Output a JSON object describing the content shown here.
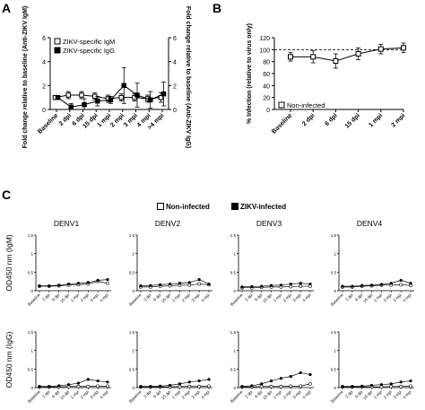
{
  "panel_labels": {
    "a": "A",
    "b": "B",
    "c": "C"
  },
  "chart_data": [
    {
      "id": "A",
      "type": "line",
      "categories": [
        "Baseline",
        "2 dpi",
        "6 dpi",
        "15 dpi",
        "1 mpi",
        "2 mpi",
        "3 mpi",
        "4 mpi",
        ">4 mpi"
      ],
      "ylabel": "Fold change relative to baseline (Anti-ZIKV IgM)",
      "y2label": "Fold change relative to baseline (Anti-ZIKV IgG)",
      "ylim": [
        0,
        6
      ],
      "yticks": [
        0,
        2,
        4,
        6
      ],
      "legend_position": "top-left",
      "series": [
        {
          "name": "ZIKV-specific IgM",
          "marker": "open-square",
          "values": [
            1.0,
            1.2,
            1.2,
            1.1,
            0.9,
            1.0,
            1.0,
            0.9,
            1.0
          ],
          "errors": [
            0,
            0.3,
            0.3,
            0.3,
            0.3,
            0.3,
            0.3,
            0.3,
            0.4
          ]
        },
        {
          "name": "ZIKV-specific IgG",
          "marker": "filled-square",
          "values": [
            1.0,
            0.2,
            0.4,
            0.7,
            0.8,
            2.0,
            1.2,
            0.8,
            1.3
          ],
          "errors": [
            0,
            0.3,
            0.5,
            0.4,
            0.3,
            1.5,
            1.0,
            0.7,
            1.0
          ]
        }
      ]
    },
    {
      "id": "B",
      "type": "line",
      "categories": [
        "Baseline",
        "2 dpi",
        "6 dpi",
        "15 dpi",
        "1 mpi",
        "2 mpi"
      ],
      "ylabel": "% Infection (relative to virus only)",
      "ylim": [
        0,
        120
      ],
      "yticks": [
        0,
        20,
        40,
        60,
        80,
        100,
        120
      ],
      "reference_line": 100,
      "legend_position": "bottom-left",
      "series": [
        {
          "name": "Non-infected",
          "marker": "open-square",
          "values": [
            88,
            88,
            81,
            93,
            101,
            103
          ],
          "errors": [
            7,
            10,
            12,
            10,
            8,
            8
          ]
        }
      ]
    },
    {
      "id": "C",
      "type": "line",
      "legend": [
        "Non-infected",
        "ZIKV-infected"
      ],
      "legend_position": "top",
      "row_labels": [
        "OD450 nm (IgM)",
        "OD450 nm (IgG)"
      ],
      "column_titles": [
        "DENV1",
        "DENV2",
        "DENV3",
        "DENV4"
      ],
      "categories": [
        "Baseline",
        "2 dpi",
        "6 dpi",
        "15 dpi",
        "1 mpi",
        "2 mpi",
        "3 mpi",
        "4 mpi"
      ],
      "ylim": [
        0,
        1.5
      ],
      "yticks": [
        0.0,
        0.5,
        1.0,
        1.5
      ],
      "panels": [
        {
          "row": 0,
          "col": 0,
          "non_infected": [
            0.12,
            0.12,
            0.13,
            0.15,
            0.16,
            0.18,
            0.25,
            0.2
          ],
          "zikv_infected": [
            0.13,
            0.13,
            0.15,
            0.18,
            0.2,
            0.22,
            0.28,
            0.3
          ]
        },
        {
          "row": 0,
          "col": 1,
          "non_infected": [
            0.1,
            0.1,
            0.12,
            0.13,
            0.15,
            0.15,
            0.18,
            0.16
          ],
          "zikv_infected": [
            0.13,
            0.14,
            0.16,
            0.18,
            0.2,
            0.22,
            0.3,
            0.18
          ]
        },
        {
          "row": 0,
          "col": 2,
          "non_infected": [
            0.08,
            0.08,
            0.09,
            0.1,
            0.1,
            0.11,
            0.12,
            0.12
          ],
          "zikv_infected": [
            0.1,
            0.11,
            0.12,
            0.14,
            0.15,
            0.18,
            0.2,
            0.18
          ]
        },
        {
          "row": 0,
          "col": 3,
          "non_infected": [
            0.1,
            0.1,
            0.12,
            0.13,
            0.15,
            0.15,
            0.16,
            0.14
          ],
          "zikv_infected": [
            0.12,
            0.12,
            0.14,
            0.15,
            0.17,
            0.2,
            0.28,
            0.2
          ]
        },
        {
          "row": 1,
          "col": 0,
          "non_infected": [
            0.02,
            0.02,
            0.02,
            0.03,
            0.03,
            0.03,
            0.04,
            0.04
          ],
          "zikv_infected": [
            0.03,
            0.03,
            0.05,
            0.08,
            0.12,
            0.22,
            0.18,
            0.15
          ]
        },
        {
          "row": 1,
          "col": 1,
          "non_infected": [
            0.02,
            0.02,
            0.02,
            0.02,
            0.03,
            0.03,
            0.03,
            0.04
          ],
          "zikv_infected": [
            0.03,
            0.03,
            0.04,
            0.06,
            0.1,
            0.15,
            0.18,
            0.22
          ]
        },
        {
          "row": 1,
          "col": 2,
          "non_infected": [
            0.02,
            0.02,
            0.03,
            0.03,
            0.03,
            0.04,
            0.04,
            0.1
          ],
          "zikv_infected": [
            0.03,
            0.05,
            0.1,
            0.18,
            0.25,
            0.3,
            0.4,
            0.35
          ]
        },
        {
          "row": 1,
          "col": 3,
          "non_infected": [
            0.02,
            0.02,
            0.02,
            0.02,
            0.02,
            0.03,
            0.03,
            0.04
          ],
          "zikv_infected": [
            0.03,
            0.03,
            0.04,
            0.06,
            0.08,
            0.1,
            0.15,
            0.18
          ]
        }
      ]
    }
  ]
}
